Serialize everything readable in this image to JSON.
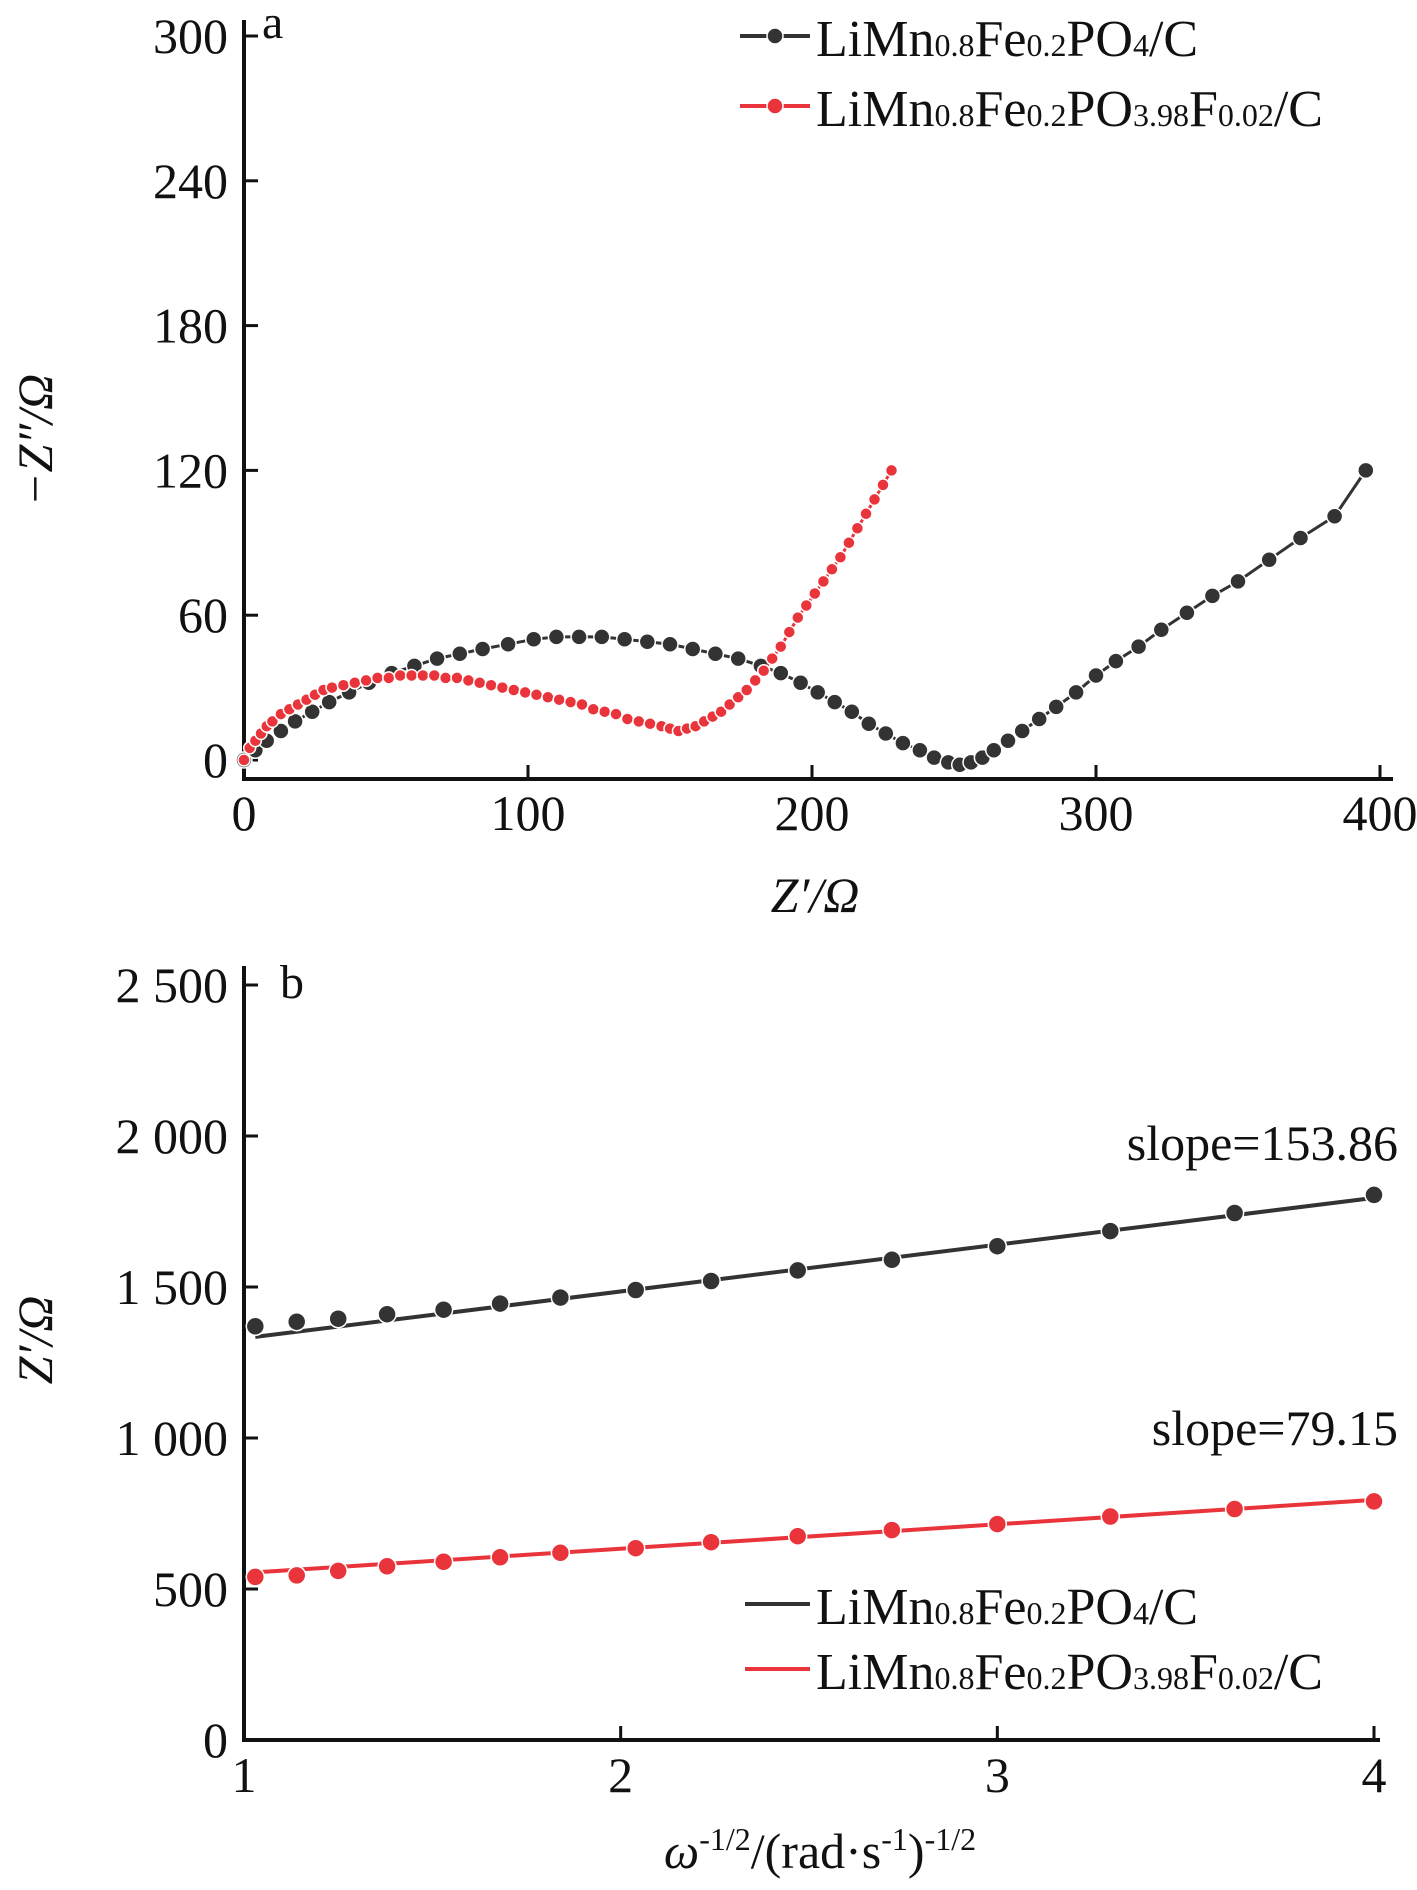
{
  "colors": {
    "black_series": "#333333",
    "red_series": "#e8343a",
    "axis": "#111111"
  },
  "chart_data": [
    {
      "type": "line",
      "panel_label": "a",
      "xlabel": "Z′/Ω",
      "ylabel": "−Z″/Ω",
      "xlim": [
        0,
        400
      ],
      "ylim": [
        0,
        300
      ],
      "xticks": [
        "0",
        "100",
        "200",
        "300",
        "400"
      ],
      "yticks": [
        "0",
        "60",
        "120",
        "180",
        "240",
        "300"
      ],
      "xtick_values": [
        0,
        100,
        200,
        300,
        400
      ],
      "ytick_values": [
        0,
        60,
        120,
        180,
        240,
        300
      ],
      "legend": {
        "placement": "top-right",
        "entries": [
          {
            "formula": [
              [
                "LiMn",
                false
              ],
              [
                "0.8",
                true
              ],
              [
                "Fe",
                false
              ],
              [
                "0.2",
                true
              ],
              [
                "PO",
                false
              ],
              [
                "4",
                true
              ],
              [
                "/C",
                false
              ]
            ]
          },
          {
            "formula": [
              [
                "LiMn",
                false
              ],
              [
                "0.8",
                true
              ],
              [
                "Fe",
                false
              ],
              [
                "0.2",
                true
              ],
              [
                "PO",
                false
              ],
              [
                "3.98",
                true
              ],
              [
                "F",
                false
              ],
              [
                "0.02",
                true
              ],
              [
                "/C",
                false
              ]
            ]
          }
        ]
      },
      "series": [
        {
          "color": "#333333",
          "points": [
            [
              0,
              0
            ],
            [
              4,
              4
            ],
            [
              8,
              8
            ],
            [
              13,
              12
            ],
            [
              18,
              16
            ],
            [
              24,
              20
            ],
            [
              30,
              24
            ],
            [
              37,
              28
            ],
            [
              44,
              32
            ],
            [
              52,
              36
            ],
            [
              60,
              39
            ],
            [
              68,
              42
            ],
            [
              76,
              44
            ],
            [
              84,
              46
            ],
            [
              93,
              48
            ],
            [
              102,
              50
            ],
            [
              110,
              51
            ],
            [
              118,
              51
            ],
            [
              126,
              51
            ],
            [
              134,
              50
            ],
            [
              142,
              49
            ],
            [
              150,
              48
            ],
            [
              158,
              46
            ],
            [
              166,
              44
            ],
            [
              174,
              42
            ],
            [
              182,
              39
            ],
            [
              189,
              36
            ],
            [
              196,
              32
            ],
            [
              202,
              28
            ],
            [
              208,
              24
            ],
            [
              214,
              20
            ],
            [
              220,
              15
            ],
            [
              226,
              11
            ],
            [
              232,
              7
            ],
            [
              238,
              4
            ],
            [
              243,
              1
            ],
            [
              248,
              -1
            ],
            [
              252,
              -2
            ],
            [
              256,
              -1
            ],
            [
              260,
              1
            ],
            [
              264,
              4
            ],
            [
              269,
              8
            ],
            [
              274,
              12
            ],
            [
              280,
              17
            ],
            [
              286,
              22
            ],
            [
              293,
              28
            ],
            [
              300,
              35
            ],
            [
              307,
              41
            ],
            [
              315,
              47
            ],
            [
              323,
              54
            ],
            [
              332,
              61
            ],
            [
              341,
              68
            ],
            [
              350,
              74
            ],
            [
              361,
              83
            ],
            [
              372,
              92
            ],
            [
              384,
              101
            ],
            [
              395,
              120
            ]
          ]
        },
        {
          "color": "#e8343a",
          "points": [
            [
              0,
              0
            ],
            [
              2,
              5
            ],
            [
              4,
              8
            ],
            [
              6,
              11
            ],
            [
              8,
              14
            ],
            [
              10,
              16
            ],
            [
              13,
              19
            ],
            [
              16,
              21
            ],
            [
              19,
              23
            ],
            [
              22,
              25
            ],
            [
              25,
              27
            ],
            [
              28,
              29
            ],
            [
              31,
              30
            ],
            [
              35,
              31
            ],
            [
              39,
              32
            ],
            [
              43,
              33
            ],
            [
              47,
              34
            ],
            [
              51,
              34
            ],
            [
              55,
              35
            ],
            [
              59,
              35
            ],
            [
              63,
              35
            ],
            [
              67,
              35
            ],
            [
              71,
              34
            ],
            [
              75,
              34
            ],
            [
              79,
              33
            ],
            [
              83,
              32
            ],
            [
              87,
              31
            ],
            [
              91,
              30
            ],
            [
              95,
              29
            ],
            [
              99,
              28
            ],
            [
              103,
              27
            ],
            [
              107,
              26
            ],
            [
              111,
              25
            ],
            [
              115,
              24
            ],
            [
              119,
              23
            ],
            [
              123,
              21
            ],
            [
              127,
              20
            ],
            [
              131,
              19
            ],
            [
              135,
              17
            ],
            [
              139,
              16
            ],
            [
              143,
              15
            ],
            [
              147,
              14
            ],
            [
              150,
              13
            ],
            [
              153,
              12
            ],
            [
              156,
              13
            ],
            [
              159,
              14
            ],
            [
              162,
              16
            ],
            [
              165,
              18
            ],
            [
              168,
              20
            ],
            [
              171,
              23
            ],
            [
              174,
              26
            ],
            [
              177,
              29
            ],
            [
              180,
              33
            ],
            [
              183,
              37
            ],
            [
              186,
              42
            ],
            [
              189,
              47
            ],
            [
              192,
              53
            ],
            [
              195,
              59
            ],
            [
              198,
              64
            ],
            [
              201,
              69
            ],
            [
              204,
              74
            ],
            [
              207,
              79
            ],
            [
              210,
              84
            ],
            [
              213,
              90
            ],
            [
              216,
              96
            ],
            [
              219,
              102
            ],
            [
              222,
              108
            ],
            [
              225,
              114
            ],
            [
              228,
              120
            ]
          ]
        }
      ]
    },
    {
      "type": "line",
      "panel_label": "b",
      "xlabel_parts": [
        [
          "ω",
          "italic",
          false
        ],
        [
          "-1/2",
          "normal",
          true
        ],
        [
          "/(rad·s",
          "normal",
          false
        ],
        [
          "-1",
          "normal",
          true
        ],
        [
          ")",
          "normal",
          false
        ],
        [
          "-1/2",
          "normal",
          true
        ]
      ],
      "ylabel": "Z′/Ω",
      "xlim": [
        1,
        4
      ],
      "ylim": [
        0,
        2500
      ],
      "xticks": [
        "1",
        "2",
        "3",
        "4"
      ],
      "yticks": [
        "0",
        "500",
        "1 000",
        "1 500",
        "2 000",
        "2 500"
      ],
      "xtick_values": [
        1,
        2,
        3,
        4
      ],
      "ytick_values": [
        0,
        500,
        1000,
        1500,
        2000,
        2500
      ],
      "legend": {
        "placement": "bottom-right",
        "entries": [
          {
            "formula": [
              [
                "LiMn",
                false
              ],
              [
                "0.8",
                true
              ],
              [
                "Fe",
                false
              ],
              [
                "0.2",
                true
              ],
              [
                "PO",
                false
              ],
              [
                "4",
                true
              ],
              [
                "/C",
                false
              ]
            ]
          },
          {
            "formula": [
              [
                "LiMn",
                false
              ],
              [
                "0.8",
                true
              ],
              [
                "Fe",
                false
              ],
              [
                "0.2",
                true
              ],
              [
                "PO",
                false
              ],
              [
                "3.98",
                true
              ],
              [
                "F",
                false
              ],
              [
                "0.02",
                true
              ],
              [
                "/C",
                false
              ]
            ]
          }
        ]
      },
      "annotations": [
        "slope=153.86",
        "slope=79.15"
      ],
      "series": [
        {
          "color": "#333333",
          "fit_line": [
            [
              1.03,
              1335
            ],
            [
              4.0,
              1795
            ]
          ],
          "points": [
            [
              1.03,
              1370
            ],
            [
              1.14,
              1385
            ],
            [
              1.25,
              1395
            ],
            [
              1.38,
              1410
            ],
            [
              1.53,
              1425
            ],
            [
              1.68,
              1445
            ],
            [
              1.84,
              1465
            ],
            [
              2.04,
              1490
            ],
            [
              2.24,
              1520
            ],
            [
              2.47,
              1555
            ],
            [
              2.72,
              1590
            ],
            [
              3.0,
              1635
            ],
            [
              3.3,
              1685
            ],
            [
              3.63,
              1745
            ],
            [
              4.0,
              1805
            ]
          ]
        },
        {
          "color": "#e8343a",
          "fit_line": [
            [
              1.03,
              555
            ],
            [
              4.0,
              795
            ]
          ],
          "points": [
            [
              1.03,
              540
            ],
            [
              1.14,
              545
            ],
            [
              1.25,
              560
            ],
            [
              1.38,
              575
            ],
            [
              1.53,
              590
            ],
            [
              1.68,
              605
            ],
            [
              1.84,
              620
            ],
            [
              2.04,
              635
            ],
            [
              2.24,
              655
            ],
            [
              2.47,
              675
            ],
            [
              2.72,
              695
            ],
            [
              3.0,
              715
            ],
            [
              3.3,
              740
            ],
            [
              3.63,
              765
            ],
            [
              4.0,
              790
            ]
          ]
        }
      ]
    }
  ]
}
